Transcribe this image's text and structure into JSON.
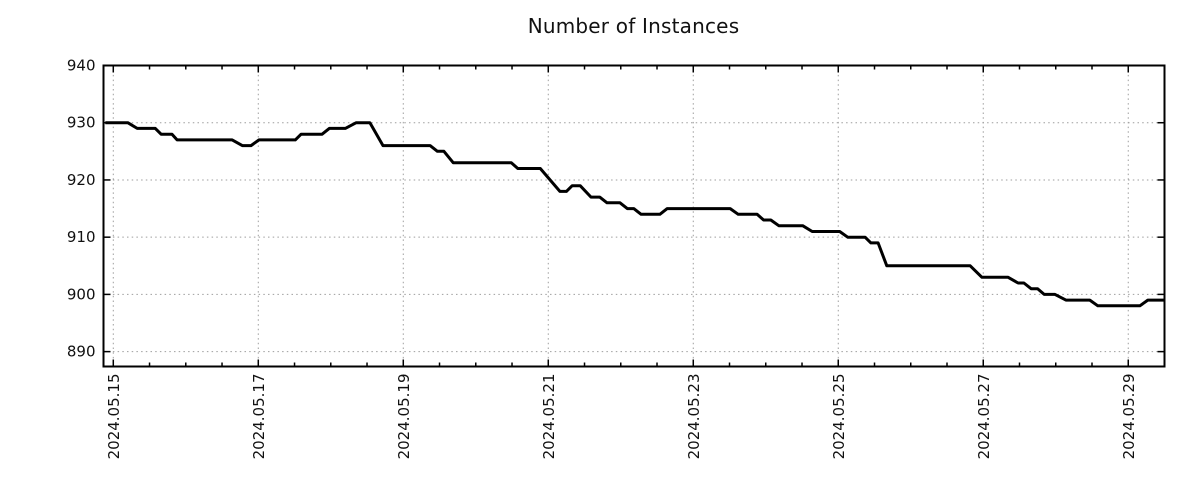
{
  "page": {
    "background": "#ffffff"
  },
  "chart_data": {
    "type": "line",
    "title": "Number of Instances",
    "x_axis": {
      "tick_labels": [
        "2024.05.15",
        "2024.05.17",
        "2024.05.19",
        "2024.05.21",
        "2024.05.23",
        "2024.05.25",
        "2024.05.27",
        "2024.05.29"
      ],
      "tick_positions_days": [
        0,
        2,
        4,
        6,
        8,
        10,
        12,
        14
      ],
      "minor_tick_interval_days": 0.5,
      "range_days": [
        -0.135,
        14.5
      ],
      "label_rotation_deg": -90
    },
    "y_axis": {
      "ticks": [
        890,
        900,
        910,
        920,
        930,
        940
      ],
      "range": [
        887.4,
        940
      ]
    },
    "grid": {
      "visible": true,
      "style": "dotted",
      "color": "#9e9e9e"
    },
    "legend": {
      "visible": false
    },
    "axis_color": "#000000",
    "series": [
      {
        "name": "Number of Instances",
        "color": "#000000",
        "line_width": 3,
        "points_day_value": [
          [
            -0.11,
            930
          ],
          [
            0.2,
            930
          ],
          [
            0.33,
            929
          ],
          [
            0.58,
            929
          ],
          [
            0.66,
            928
          ],
          [
            0.81,
            928
          ],
          [
            0.88,
            927
          ],
          [
            1.64,
            927
          ],
          [
            1.78,
            926
          ],
          [
            1.9,
            926
          ],
          [
            2.01,
            927
          ],
          [
            2.51,
            927
          ],
          [
            2.59,
            928
          ],
          [
            2.88,
            928
          ],
          [
            2.98,
            929
          ],
          [
            3.2,
            929
          ],
          [
            3.35,
            930
          ],
          [
            3.54,
            930
          ],
          [
            3.72,
            926
          ],
          [
            4.37,
            926
          ],
          [
            4.47,
            925
          ],
          [
            4.56,
            925
          ],
          [
            4.69,
            923
          ],
          [
            5.49,
            923
          ],
          [
            5.58,
            922
          ],
          [
            5.89,
            922
          ],
          [
            6.16,
            918
          ],
          [
            6.25,
            918
          ],
          [
            6.33,
            919
          ],
          [
            6.44,
            919
          ],
          [
            6.59,
            917
          ],
          [
            6.71,
            917
          ],
          [
            6.81,
            916
          ],
          [
            6.99,
            916
          ],
          [
            7.09,
            915
          ],
          [
            7.18,
            915
          ],
          [
            7.28,
            914
          ],
          [
            7.54,
            914
          ],
          [
            7.64,
            915
          ],
          [
            8.51,
            915
          ],
          [
            8.62,
            914
          ],
          [
            8.88,
            914
          ],
          [
            8.97,
            913
          ],
          [
            9.07,
            913
          ],
          [
            9.18,
            912
          ],
          [
            9.51,
            912
          ],
          [
            9.64,
            911
          ],
          [
            10.02,
            911
          ],
          [
            10.13,
            910
          ],
          [
            10.37,
            910
          ],
          [
            10.45,
            909
          ],
          [
            10.55,
            909
          ],
          [
            10.67,
            905
          ],
          [
            11.82,
            905
          ],
          [
            11.98,
            903
          ],
          [
            12.34,
            903
          ],
          [
            12.48,
            902
          ],
          [
            12.56,
            902
          ],
          [
            12.66,
            901
          ],
          [
            12.75,
            901
          ],
          [
            12.84,
            900
          ],
          [
            12.99,
            900
          ],
          [
            13.14,
            899
          ],
          [
            13.47,
            899
          ],
          [
            13.58,
            898
          ],
          [
            14.16,
            898
          ],
          [
            14.27,
            899
          ],
          [
            14.49,
            899
          ]
        ]
      }
    ]
  }
}
